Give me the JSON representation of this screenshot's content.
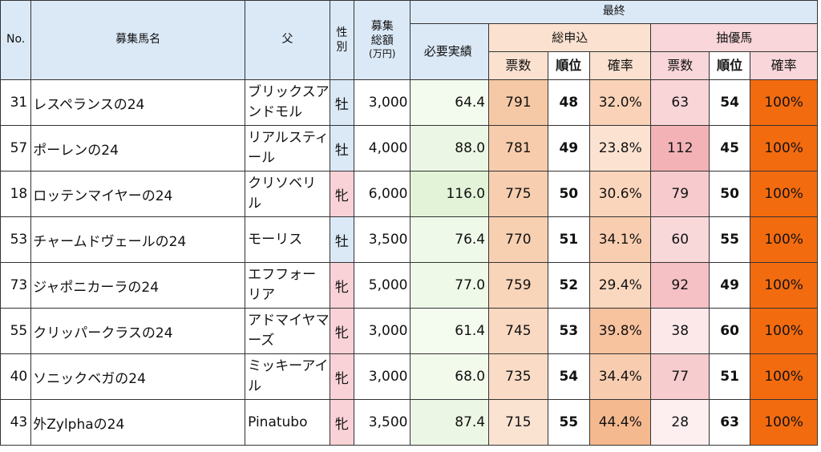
{
  "header": {
    "no": "No.",
    "horse_name": "募集馬名",
    "sire": "父",
    "sex": "性別",
    "total_amount_line1": "募集",
    "total_amount_line2": "総額",
    "total_amount_unit": "(万円)",
    "final": "最終",
    "required_record": "必要実績",
    "total_applications": "総申込",
    "lottery_priority": "抽優馬",
    "votes": "票数",
    "rank": "順位",
    "probability": "確率"
  },
  "colors": {
    "header_blue": "#dbe9f7",
    "male_bg": "#dbe9f7",
    "female_bg": "#f8d2d6",
    "full_probability": "#f36b0f"
  },
  "rows": [
    {
      "no": "31",
      "name": "レスペランスの24",
      "sire": "ブリックスアンドモル",
      "sex": "牡",
      "sex_type": "m",
      "amount": "3,000",
      "required": "64.4",
      "total_votes": "791",
      "total_rank": "48",
      "total_rate": "32.0%",
      "lottery_votes": "63",
      "lottery_rank": "54",
      "lottery_rate": "100%"
    },
    {
      "no": "57",
      "name": "ポーレンの24",
      "sire": "リアルスティール",
      "sex": "牡",
      "sex_type": "m",
      "amount": "4,000",
      "required": "88.0",
      "total_votes": "781",
      "total_rank": "49",
      "total_rate": "23.8%",
      "lottery_votes": "112",
      "lottery_rank": "45",
      "lottery_rate": "100%"
    },
    {
      "no": "18",
      "name": "ロッテンマイヤーの24",
      "sire": "クリソベリル",
      "sex": "牝",
      "sex_type": "f",
      "amount": "6,000",
      "required": "116.0",
      "total_votes": "775",
      "total_rank": "50",
      "total_rate": "30.6%",
      "lottery_votes": "79",
      "lottery_rank": "50",
      "lottery_rate": "100%"
    },
    {
      "no": "53",
      "name": "チャームドヴェールの24",
      "sire": "モーリス",
      "sex": "牡",
      "sex_type": "m",
      "amount": "3,500",
      "required": "76.4",
      "total_votes": "770",
      "total_rank": "51",
      "total_rate": "34.1%",
      "lottery_votes": "60",
      "lottery_rank": "55",
      "lottery_rate": "100%"
    },
    {
      "no": "73",
      "name": "ジャポニカーラの24",
      "sire": "エフフォーリア",
      "sex": "牝",
      "sex_type": "f",
      "amount": "5,000",
      "required": "77.0",
      "total_votes": "759",
      "total_rank": "52",
      "total_rate": "29.4%",
      "lottery_votes": "92",
      "lottery_rank": "49",
      "lottery_rate": "100%"
    },
    {
      "no": "55",
      "name": "クリッパークラスの24",
      "sire": "アドマイヤマーズ",
      "sex": "牝",
      "sex_type": "f",
      "amount": "3,000",
      "required": "61.4",
      "total_votes": "745",
      "total_rank": "53",
      "total_rate": "39.8%",
      "lottery_votes": "38",
      "lottery_rank": "60",
      "lottery_rate": "100%"
    },
    {
      "no": "40",
      "name": "ソニックベガの24",
      "sire": "ミッキーアイル",
      "sex": "牝",
      "sex_type": "f",
      "amount": "3,000",
      "required": "68.0",
      "total_votes": "735",
      "total_rank": "54",
      "total_rate": "34.4%",
      "lottery_votes": "77",
      "lottery_rank": "51",
      "lottery_rate": "100%"
    },
    {
      "no": "43",
      "name": "外Zylphaの24",
      "sire": "Pinatubo",
      "sex": "牝",
      "sex_type": "f",
      "amount": "3,500",
      "required": "87.4",
      "total_votes": "715",
      "total_rank": "55",
      "total_rate": "44.4%",
      "lottery_votes": "28",
      "lottery_rank": "63",
      "lottery_rate": "100%"
    }
  ]
}
